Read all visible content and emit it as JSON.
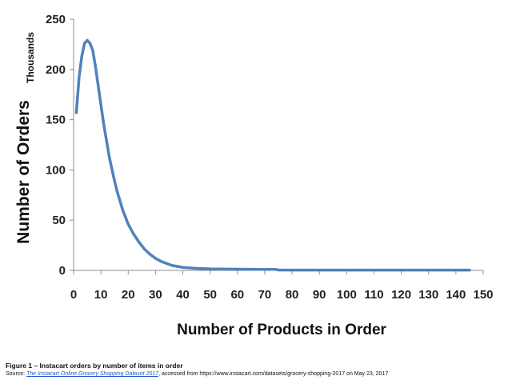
{
  "chart_data": {
    "type": "line",
    "title": "",
    "xlabel": "Number of Products in Order",
    "ylabel": "Number of Orders",
    "y_unit_label": "Thousands",
    "xlim": [
      0,
      150
    ],
    "ylim": [
      0,
      250
    ],
    "x_ticks": [
      0,
      10,
      20,
      30,
      40,
      50,
      60,
      70,
      80,
      90,
      100,
      110,
      120,
      130,
      140,
      150
    ],
    "y_ticks": [
      0,
      50,
      100,
      150,
      200,
      250
    ],
    "grid": false,
    "legend": "none",
    "line_color": "#4f81bd",
    "series": [
      {
        "x": [
          1,
          2,
          3,
          4,
          5,
          6,
          7,
          8,
          9,
          10,
          11,
          12,
          13,
          14,
          15,
          16,
          17,
          18,
          19,
          20,
          22,
          24,
          26,
          28,
          30,
          32,
          34,
          36,
          38,
          40,
          45,
          50,
          60,
          70,
          74,
          75,
          80,
          90,
          100,
          110,
          120,
          130,
          140,
          145
        ],
        "y": [
          157,
          192,
          213,
          226,
          229,
          226,
          219,
          203,
          184,
          165,
          146,
          130,
          114,
          101,
          89,
          78,
          69,
          60,
          53,
          46,
          36,
          28,
          21,
          16,
          12,
          9,
          7,
          5,
          4,
          3,
          2,
          1.5,
          1.2,
          1,
          1,
          0.4,
          0.3,
          0.3,
          0.3,
          0.3,
          0.3,
          0.3,
          0.3,
          0.3
        ]
      }
    ]
  },
  "caption": {
    "title": "Figure 1 – Instacart orders by number of items in order",
    "source_prefix": "Source: ",
    "source_link": "The Instacart Online Grocery Shopping Dataset 2017",
    "source_suffix": ", accessed from https://www.instacart.com/datasets/grocery-shopping-2017 on May 23, 2017"
  }
}
